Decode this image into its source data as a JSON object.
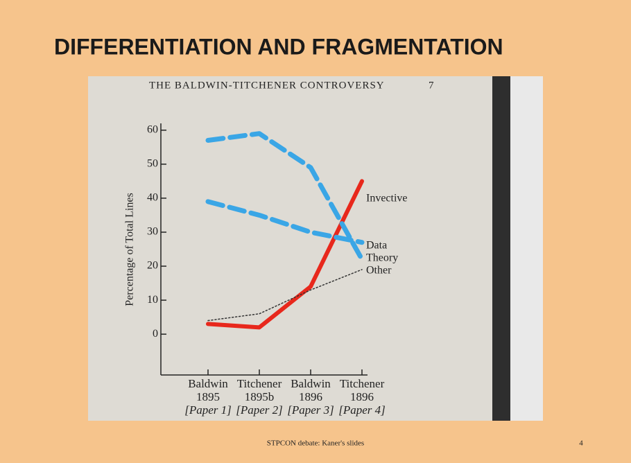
{
  "slide_title": "DIFFERENTIATION AND FRAGMENTATION",
  "running_header": "THE BALDWIN-TITCHENER CONTROVERSY",
  "page_number": "7",
  "footer": "STPCON debate: Kaner's slides",
  "slide_number": "4",
  "chart_data": {
    "type": "line",
    "ylabel": "Percentage of Total Lines",
    "categories": [
      [
        "Baldwin",
        "1895",
        "[Paper 1]"
      ],
      [
        "Titchener",
        "1895b",
        "[Paper 2]"
      ],
      [
        "Baldwin",
        "1896",
        "[Paper 3]"
      ],
      [
        "Titchener",
        "1896",
        "[Paper 4]"
      ]
    ],
    "series": [
      {
        "name": "Invective",
        "color": "#e8281c",
        "values": [
          3,
          2,
          14,
          45
        ]
      },
      {
        "name": "Data",
        "color": "#3aa6e6",
        "values": [
          39,
          35,
          30,
          27
        ]
      },
      {
        "name": "Theory",
        "color": "#3aa6e6",
        "values": [
          57,
          59,
          49,
          22
        ]
      },
      {
        "name": "Other",
        "color": "#333333",
        "values": [
          4,
          6,
          13,
          19
        ]
      }
    ],
    "ylim": [
      -12,
      62
    ],
    "yticks": [
      0,
      10,
      20,
      30,
      40,
      50,
      60
    ]
  }
}
